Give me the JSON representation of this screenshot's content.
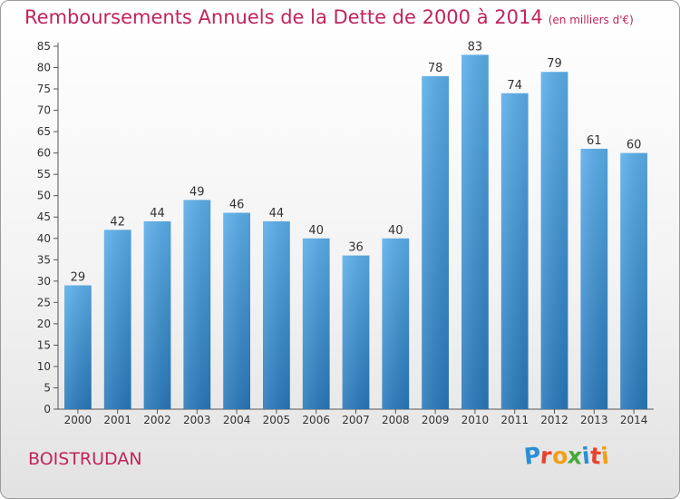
{
  "header": {
    "title": "Remboursements Annuels de la Dette de 2000 à 2014",
    "unit": "(en milliers d'€)"
  },
  "municipality": "BOISTRUDAN",
  "logo": {
    "text": "Proxiti",
    "letters": [
      {
        "ch": "P",
        "color": "#2a8fd6"
      },
      {
        "ch": "r",
        "color": "#e8422c"
      },
      {
        "ch": "o",
        "color": "#f0a019"
      },
      {
        "ch": "x",
        "color": "#48a83a"
      },
      {
        "ch": "i",
        "color": "#2a8fd6"
      },
      {
        "ch": "t",
        "color": "#e8422c"
      },
      {
        "ch": "i",
        "color": "#f0a019"
      }
    ]
  },
  "chart_data": {
    "type": "bar",
    "title": "Remboursements Annuels de la Dette de 2000 à 2014",
    "subtitle": "(en milliers d'€)",
    "categories": [
      "2000",
      "2001",
      "2002",
      "2003",
      "2004",
      "2005",
      "2006",
      "2007",
      "2008",
      "2009",
      "2010",
      "2011",
      "2012",
      "2013",
      "2014"
    ],
    "values": [
      29,
      42,
      44,
      49,
      46,
      44,
      40,
      36,
      40,
      78,
      83,
      74,
      79,
      61,
      60
    ],
    "ylim": [
      0,
      85
    ],
    "yticks": [
      0,
      5,
      10,
      15,
      20,
      25,
      30,
      35,
      40,
      45,
      50,
      55,
      60,
      65,
      70,
      75,
      80,
      85
    ],
    "grid": false,
    "bar_color_top": "#5aaeea",
    "bar_color_bottom": "#2878ba"
  }
}
